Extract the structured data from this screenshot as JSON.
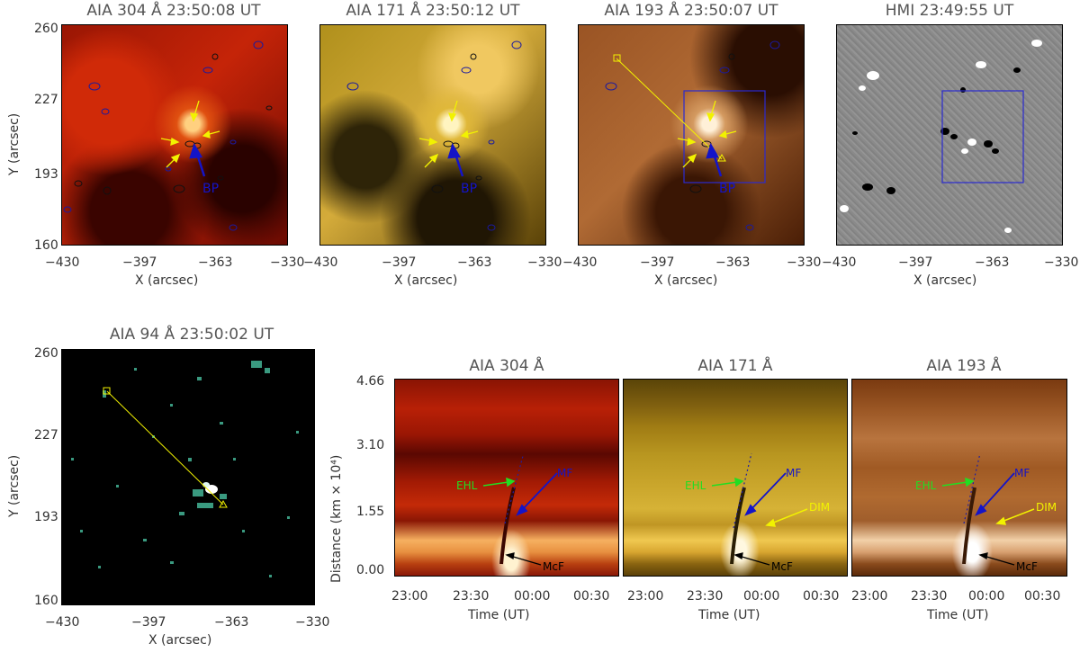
{
  "figure": {
    "top_panels": [
      {
        "title": "AIA 304 Å 23:50:08 UT",
        "arrow_label": "BP"
      },
      {
        "title": "AIA 171 Å 23:50:12 UT",
        "arrow_label": "BP"
      },
      {
        "title": "AIA 193 Å 23:50:07 UT",
        "arrow_label": "BP"
      },
      {
        "title": "HMI 23:49:55 UT"
      }
    ],
    "aia94": {
      "title": "AIA 94 Å 23:50:02 UT"
    },
    "map_axes": {
      "x_label": "X (arcsec)",
      "y_label": "Y (arcsec)",
      "x_ticks": [
        "−430",
        "−397",
        "−363",
        "−330"
      ],
      "y_ticks": [
        "260",
        "227",
        "193",
        "160"
      ]
    },
    "td_panels": [
      {
        "title": "AIA 304 Å",
        "labels": {
          "ehl": "EHL",
          "mf": "MF",
          "mcf": "McF"
        }
      },
      {
        "title": "AIA 171 Å",
        "labels": {
          "ehl": "EHL",
          "mf": "MF",
          "dim": "DIM",
          "mcf": "McF"
        }
      },
      {
        "title": "AIA 193 Å",
        "labels": {
          "ehl": "EHL",
          "mf": "MF",
          "dim": "DIM",
          "mcf": "McF"
        }
      }
    ],
    "td_axes": {
      "x_label": "Time (UT)",
      "x_ticks": [
        "23:00",
        "23:30",
        "00:00",
        "00:30"
      ],
      "y_label": "Distance (km × 10⁴)",
      "y_ticks": [
        "4.66",
        "3.10",
        "1.55",
        "0.00"
      ]
    },
    "colors": {
      "aia304": "#b01c08",
      "aia171": "#a8860a",
      "aia193": "#7a3e12",
      "hmi": "#8c8c8c",
      "aia94": "#000000",
      "arrow_yellow": "#f2f200",
      "arrow_blue": "#1414c8",
      "arrow_green": "#22dd22",
      "box_blue": "#2a2ad0"
    }
  }
}
